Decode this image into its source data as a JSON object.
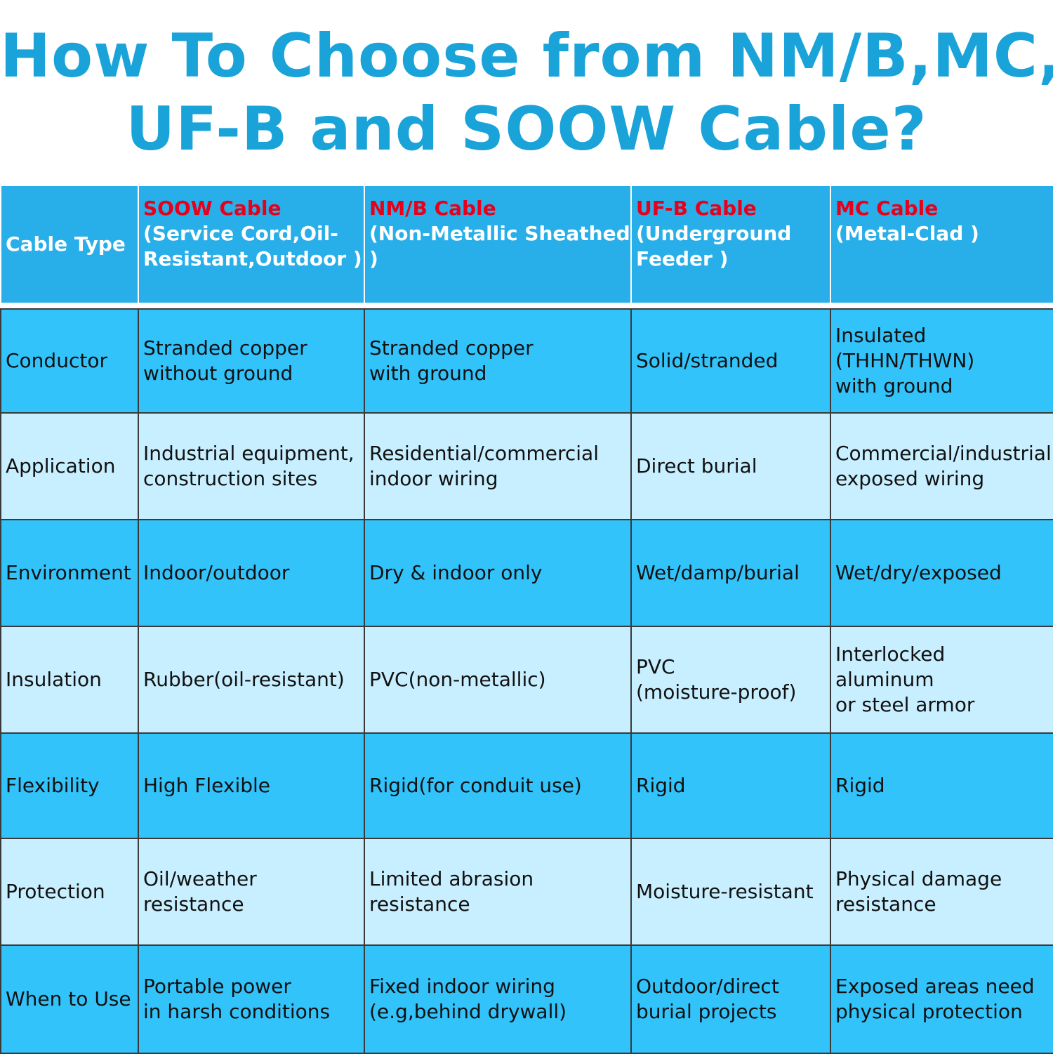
{
  "title": {
    "line1": "How To Choose from NM/B,MC,",
    "line2": "UF-B and SOOW Cable?"
  },
  "header": {
    "label": "Cable Type",
    "columns": [
      {
        "name": "SOOW Cable",
        "sub_lines": [
          "(Service Cord,Oil-",
          "Resistant,Outdoor )"
        ]
      },
      {
        "name": "NM/B Cable",
        "sub_lines": [
          "(Non-Metallic Sheathed )"
        ]
      },
      {
        "name": "UF-B Cable",
        "sub_lines": [
          "(Underground",
          "Feeder )"
        ]
      },
      {
        "name": "MC Cable",
        "sub_lines": [
          "(Metal-Clad )"
        ]
      }
    ]
  },
  "rows": [
    {
      "label": "Conductor",
      "cells": [
        [
          "Stranded copper",
          "without ground"
        ],
        [
          "Stranded copper",
          "with ground"
        ],
        [
          "Solid/stranded"
        ],
        [
          "Insulated",
          "(THHN/THWN)",
          "with ground"
        ]
      ]
    },
    {
      "label": "Application",
      "cells": [
        [
          "Industrial equipment,",
          "construction sites"
        ],
        [
          "Residential/commercial",
          "indoor wiring"
        ],
        [
          "Direct burial"
        ],
        [
          "Commercial/industrial",
          "exposed wiring"
        ]
      ]
    },
    {
      "label": "Environment",
      "cells": [
        [
          "Indoor/outdoor"
        ],
        [
          "Dry & indoor only"
        ],
        [
          "Wet/damp/burial"
        ],
        [
          "Wet/dry/exposed"
        ]
      ]
    },
    {
      "label": "Insulation",
      "cells": [
        [
          "Rubber(oil-resistant)"
        ],
        [
          "PVC(non-metallic)"
        ],
        [
          "PVC",
          "(moisture-proof)"
        ],
        [
          "Interlocked",
          "aluminum",
          "or steel armor"
        ]
      ]
    },
    {
      "label": "Flexibility",
      "cells": [
        [
          "High Flexible"
        ],
        [
          "Rigid(for conduit use)"
        ],
        [
          "Rigid"
        ],
        [
          "Rigid"
        ]
      ]
    },
    {
      "label": "Protection",
      "cells": [
        [
          "Oil/weather",
          "resistance"
        ],
        [
          "Limited abrasion",
          "resistance"
        ],
        [
          "Moisture-resistant"
        ],
        [
          "Physical damage",
          "resistance"
        ]
      ]
    },
    {
      "label": "When to Use",
      "cells": [
        [
          "Portable power",
          "in harsh conditions"
        ],
        [
          "Fixed indoor wiring",
          "(e.g,behind drywall)"
        ],
        [
          "Outdoor/direct",
          "burial projects"
        ],
        [
          "Exposed areas need",
          "physical protection"
        ]
      ]
    }
  ],
  "colors": {
    "title": "#1aa3d9",
    "header_bg": "#28aee8",
    "cable_name": "#e8001a",
    "row_dark": "#33c3fb",
    "row_light": "#c8efff"
  }
}
